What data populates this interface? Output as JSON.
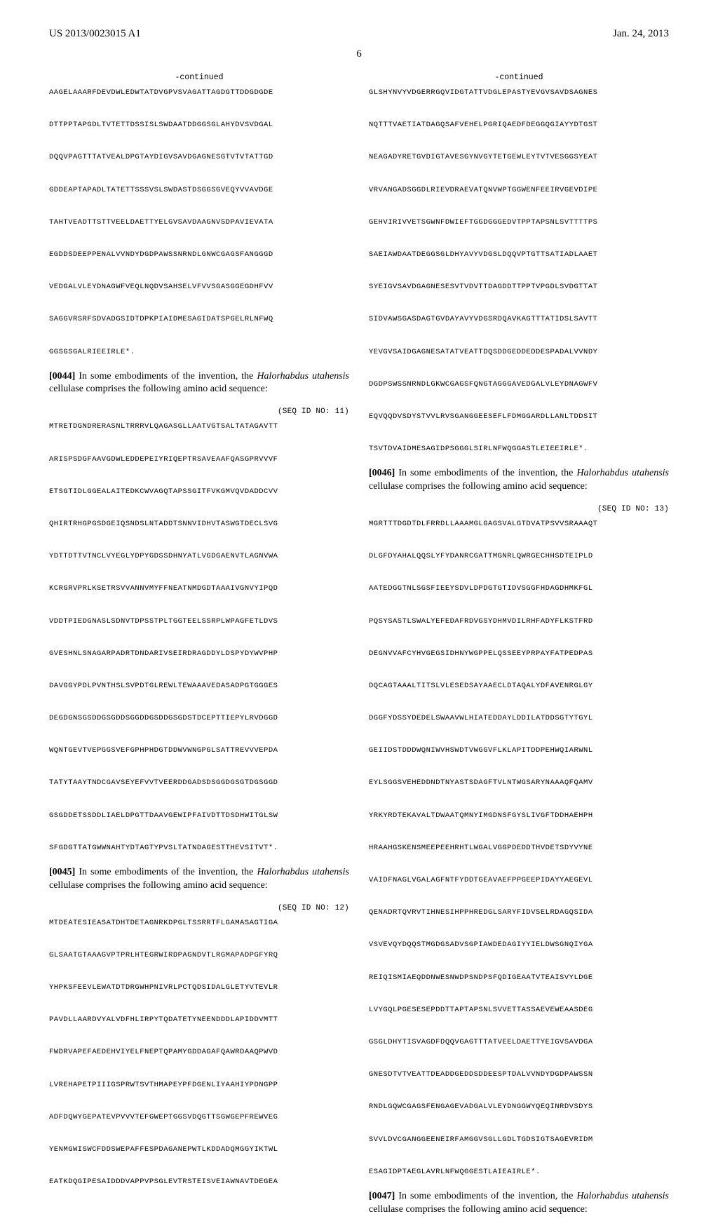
{
  "header": {
    "left": "US 2013/0023015 A1",
    "right": "Jan. 24, 2013"
  },
  "page_number": "6",
  "left_column": {
    "continued_label": "-continued",
    "seq_continued": "AAGELAAARFDEVDWLEDWTATDVGPVSVAGATTAGDGTTDDGDGDE\n\nDTTPPTAPGDLTVTETTDSSISLSWDAATDDGGSGLAHYDVSVDGAL\n\nDQQVPAGTTTATVEALDPGTAYDIGVSAVDGAGNESGTVTVTATTGD\n\nGDDEAPTAPADLTATETTSSSVSLSWDASTDSGGSGVEQYVVAVDGE\n\nTAHTVEADTTSTTVEELDAETTYELGVSAVDAAGNVSDPAVIEVATA\n\nEGDDSDEEPPENALVVNDYDGDPAWSSNRNDLGNWCGAGSFANGGGD\n\nVEDGALVLEYDNAGWFVEQLNQDVSAHSELVFVVSGASGGEGDHFVV\n\nSAGGVRSRFSDVADGSIDTDPKPIAIDMESAGIDATSPGELRLNFWQ\n\nGGSGSGALRIEEIRLE*.",
    "para_0044_num": "[0044]",
    "para_0044_text": " In some embodiments of the invention, the ",
    "para_0044_italic": "Halorhabdus utahensis",
    "para_0044_text2": " cellulase comprises the following amino acid sequence:",
    "seq_id_11": "(SEQ ID NO: 11)",
    "seq_11": "MTRETDGNDRERASNLTRRRVLQAGASGLLAATVGTSALTATAGAVTT\n\nARISPSDGFAAVGDWLEDDEPEIYRIQEPTRSAVEAAFQASGPRVVVF\n\nETSGTIDLGGEALAITEDKCWVAGQTAPSSGITFVKGMVQVDADDCVV\n\nQHIRTRHGPGSDGEIQSNDSLNTADDTSNNVIDHVTASWGTDECLSVG\n\nYDTTDTTVTNCLVYEGLYDPYGDSSDHNYATLVGDGAENVTLAGNVWA\n\nKCRGRVPRLKSETRSVVANNVMYFFNEATNMDGDTAAAIVGNVYIPQD\n\nVDDTPIEDGNASLSDNVTDPSSTPLTGGTEELSSRPLWPAGFETLDVS\n\nGVESHNLSNAGARPADRTDNDARIVSEIRDRAGDDYLDSPYDYWVPHP\n\nDAVGGYPDLPVNTHSLSVPDTGLREWLTEWAAAVEDASADPGTGGGES\n\nDEGDGNSGSDDGSGDDSGGDDGSDDGSGDSTDCEPTTIEPYLRVDGGD\n\nWQNTGEVTVEPGGSVEFGPHPHDGTDDWVWNGPGLSATTREVVVEPDA\n\nTATYTAAYTNDCGAVSEYEFVVTVEERDDGADSDSGGDGSGTDGSGGD\n\nGSGDDETSSDDLIAELDPGTTDAAVGEWIPFAIVDTTDSDHWITGLSW\n\nSFGDGTTATGWWNAHTYDTAGTYPVSLTATNDAGESTTHEVSITVT*.",
    "para_0045_num": "[0045]",
    "para_0045_text": " In some embodiments of the invention, the ",
    "para_0045_italic": "Halorhabdus utahensis",
    "para_0045_text2": " cellulase comprises the following amino acid sequence:",
    "seq_id_12": "(SEQ ID NO: 12)",
    "seq_12": "MTDEATESIEASATDHTDETAGNRKDPGLTSSRRTFLGAMASAGTIGA\n\nGLSAATGTAAAGVPTPRLHTEGRWIRDPAGNDVTLRGMAPADPGFYRQ\n\nYHPKSFEEVLEWATDTDRGWHPNIVRLPCTQDSIDALGLETYVTEVLR\n\nPAVDLLAARDVYALVDFHLIRPYTQDATETYNEENDDDLAPIDDVMTT\n\nFWDRVAPEFAEDEHVIYELFNEPTQPAMYGDDAGAFQAWRDAAQPWVD\n\nLVREHAPETPIIIGSPRWTSVTHMAPEYPFDGENLIYAAHIYPDNGPP\n\nADFDQWYGEPATEVPVVVTEFGWEPTGGSVDQGTTSGWGEPFREWVEG\n\nYENMGWISWCFDDSWEPAFFESPDAGANEPWTLKDDADQMGGYIKTWL\n\nEATKDQGIPESAIDDDVAPPVPSGLEVTRSTEISVEIAWNAVTDEGEA",
    "filler": ""
  },
  "right_column": {
    "continued_label": "-continued",
    "seq_continued": "GLSHYNVYVDGERRGQVIDGTATTVDGLEPASTYEVGVSAVDSAGNES\n\nNQTTTVAETIATDAGQSAFVEHELPGRIQAEDFDEGGQGIAYYDTGST\n\nNEAGADYRETGVDIGTAVESGYNVGYTETGEWLEYTVTVESGGSYEAT\n\nVRVANGADSGGDLRIEVDRAEVATQNVWPTGGWENFEEIRVGEVDIPE\n\nGEHVIRIVVETSGWNFDWIEFTGGDGGGEDVTPPTAPSNLSVTTTTPS\n\nSAEIAWDAATDEGGSGLDHYAVYVDGSLDQQVPTGTTSATIADLAAET\n\nSYEIGVSAVDGAGNESESVTVDVTTDAGDDTTPPTVPGDLSVDGTTAT\n\nSIDVAWSGASDAGTGVDAYAVYVDGSRDQAVKAGTTTATIDSLSAVTT\n\nYEVGVSAIDGAGNESATATVEATTDQSDDGEDDEDDESPADALVVNDY\n\nDGDPSWSSNRNDLGKWCGAGSFQNGTAGGGAVEDGALVLEYDNAGWFV\n\nEQVQQDVSDYSTVVLRVSGANGGEESEFLFDMGGARDLLANLTDDSIT\n\nTSVTDVAIDMESAGIDPSGGGLSIRLNFWQGGASTLEIEEIRLE*.",
    "para_0046_num": "[0046]",
    "para_0046_text": " In some embodiments of the invention, the ",
    "para_0046_italic": "Halorhabdus utahensis",
    "para_0046_text2": " cellulase comprises the following amino acid sequence:",
    "seq_id_13": "(SEQ ID NO: 13)",
    "seq_13": "MGRTTTDGDTDLFRRDLLAAAMGLGAGSVALGTDVATPSVVSRAAAQT\n\nDLGFDYAHALQQSLYFYDANRCGATTMGNRLQWRGECHHSDTEIPLD\n\nAATEDGGTNLSGSFIEEYSDVLDPDGTGTIDVSGGFHDAGDHMKFGL\n\nPQSYSASTLSWALYEFEDAFRDVGSYDHMVDILRHFADYFLKSTFRD\n\nDEGNVVAFCYHVGEGSIDHNYWGPPELQSSEEYPRPAYFATPEDPAS\n\nDQCAGTAAALTITSLVLESEDSAYAAECLDTAQALYDFAVENRGLGY\n\nDGGFYDSSYDEDELSWAAVWLHIATEDDAYLDDILATDDSGTYTGYL\n\nGEIIDSTDDDWQNIWVHSWDTVWGGVFLKLAPITDDPEHWQIARWNL\n\nEYLSGGSVEHEDDNDTNYASTSDAGFTVLNTWGSARYNAAAQFQAMV\n\nYRKYRDTEKAVALTDWAATQMNYIMGDNSFGYSLIVGFTDDHAEHPH\n\nHRAAHGSKENSMEEPEEHRHTLWGALVGGPDEDDTHVDETSDYVYNE\n\nVAIDFNAGLVGALAGFNTFYDDTGEAVAEFPPGEEPIDAYYAEGEVL\n\nQENADRTQVRVTIHNESIHPPHREDGLSARYFIDVSELRDAGQSIDA\n\nVSVEVQYDQQSTMGDGSADVSGPIAWDEDAGIYYIELDWSGNQIYGA\n\nREIQISMIAEQDDNWESNWDPSNDPSFQDIGEAATVTEAISVYLDGE\n\nLVYGQLPGESESEPDDTTAPTAPSNLSVVETTASSAEVEWEAASDEG\n\nGSGLDHYTISVAGDFDQQVGAGTTTATVEELDAETTYEIGVSAVDGA\n\nGNESDTVTVEATTDEADDGEDDSDDEESPTDALVVNDYDGDPAWSSN\n\nRNDLGQWCGAGSFENGAGEVADGALVLEYDNGGWYQEQINRDVSDYS\n\nSVVLDVCGANGGEENEIRFAMGGVSGLLGDLTGDSIGTSAGEVRIDM\n\nESAGIDPTAEGLAVRLNFWQGGESTLAIEAIRLE*.",
    "para_0047_num": "[0047]",
    "para_0047_text": " In some embodiments of the invention, the ",
    "para_0047_italic": "Halorhabdus utahensis",
    "para_0047_text2": " cellulase comprises the following amino acid sequence:"
  }
}
